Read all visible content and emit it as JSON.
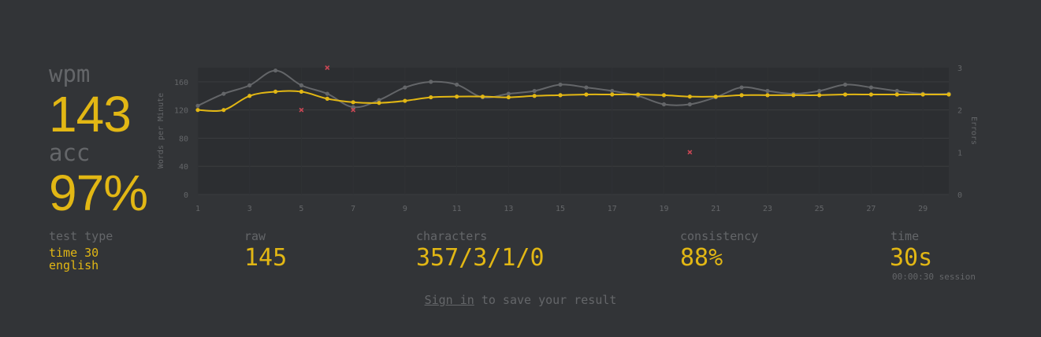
{
  "stats": {
    "wpm_label": "wpm",
    "wpm_value": "143",
    "acc_label": "acc",
    "acc_value": "97%",
    "test_type_label": "test type",
    "test_type_mode": "time 30",
    "test_type_language": "english",
    "raw_label": "raw",
    "raw_value": "145",
    "characters_label": "characters",
    "characters_value": "357/3/1/0",
    "consistency_label": "consistency",
    "consistency_value": "88%",
    "time_label": "time",
    "time_value": "30s",
    "session_note": "00:00:30 session"
  },
  "footer": {
    "sign_in_link": "Sign in",
    "sign_in_suffix": " to save your result"
  },
  "colors": {
    "background": "#323437",
    "accent": "#e2b714",
    "muted": "#646669",
    "raw_line": "#646669",
    "error_marker": "#ca4754"
  },
  "chart_data": {
    "type": "line",
    "ylabel": "Words per Minute",
    "y2label": "Errors",
    "ylim": [
      0,
      180
    ],
    "y2lim": [
      0,
      3
    ],
    "yticks": [
      "0",
      "40",
      "80",
      "120",
      "160"
    ],
    "y2ticks": [
      "0",
      "1",
      "2",
      "3"
    ],
    "x": [
      1,
      2,
      3,
      4,
      5,
      6,
      7,
      8,
      9,
      10,
      11,
      12,
      13,
      14,
      15,
      16,
      17,
      18,
      19,
      20,
      21,
      22,
      23,
      24,
      25,
      26,
      27,
      28,
      29,
      30
    ],
    "xticks": [
      "1",
      "3",
      "5",
      "7",
      "9",
      "11",
      "13",
      "15",
      "17",
      "19",
      "21",
      "23",
      "25",
      "27",
      "29"
    ],
    "series": [
      {
        "name": "raw",
        "values": [
          126,
          143,
          155,
          176,
          155,
          143,
          124,
          134,
          152,
          160,
          156,
          138,
          143,
          147,
          156,
          152,
          147,
          140,
          128,
          128,
          138,
          152,
          147,
          143,
          147,
          156,
          152,
          147,
          143,
          143
        ]
      },
      {
        "name": "wpm",
        "values": [
          120,
          120,
          140,
          146,
          146,
          136,
          131,
          130,
          133,
          138,
          139,
          139,
          138,
          140,
          141,
          142,
          142,
          142,
          141,
          139,
          139,
          141,
          141,
          141,
          141,
          142,
          142,
          142,
          142,
          142
        ]
      },
      {
        "name": "errors",
        "points": [
          [
            5,
            2
          ],
          [
            6,
            3
          ],
          [
            7,
            2
          ],
          [
            20,
            1
          ]
        ]
      }
    ]
  }
}
